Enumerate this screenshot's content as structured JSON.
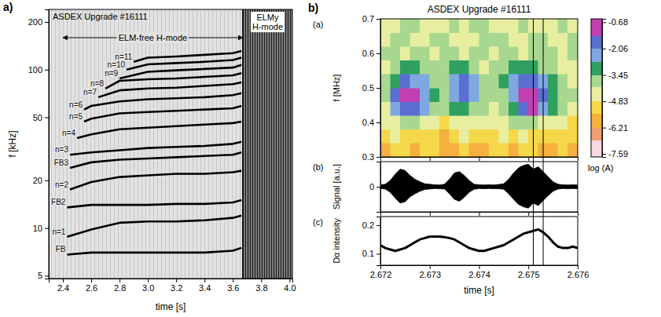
{
  "chart_data": [
    {
      "type": "line",
      "panel": "a)",
      "title": "ASDEX Upgrade #16111",
      "xlabel": "time [s]",
      "ylabel": "f [kHz]",
      "log": "y",
      "xlim": [
        2.3,
        4.02
      ],
      "ylim": [
        4.8,
        240
      ],
      "xticks": [
        2.4,
        2.6,
        2.8,
        {
          "value": 3,
          "label": "3.0"
        },
        3.2,
        3.4,
        3.6,
        3.8,
        {
          "value": 4,
          "label": "4.0"
        }
      ],
      "yticks": [
        5,
        10,
        20,
        50,
        100,
        200
      ],
      "regions": [
        {
          "label": "ELM-free H-mode",
          "x": [
            2.4,
            3.67
          ]
        },
        {
          "label": "ELMy H-mode",
          "x": [
            3.67,
            4.02
          ]
        }
      ],
      "series": [
        {
          "name": "FB",
          "color": "#000000",
          "x": [
            2.43,
            2.6,
            2.8,
            3.0,
            3.2,
            3.4,
            3.6,
            3.66
          ],
          "values": [
            6.8,
            7,
            7,
            7,
            7,
            7,
            7.2,
            7.5
          ]
        },
        {
          "name": "n=1",
          "color": "#000000",
          "x": [
            2.43,
            2.6,
            2.8,
            3.0,
            3.2,
            3.4,
            3.6,
            3.66
          ],
          "values": [
            8.8,
            9.8,
            10.8,
            11,
            11,
            11.2,
            11.6,
            12
          ]
        },
        {
          "name": "FB2",
          "color": "#000000",
          "x": [
            2.43,
            2.6,
            2.8,
            3.0,
            3.2,
            3.4,
            3.6,
            3.66
          ],
          "values": [
            13.5,
            14,
            14,
            14,
            14.2,
            14.2,
            14.5,
            15
          ]
        },
        {
          "name": "n=2",
          "color": "#000000",
          "x": [
            2.45,
            2.6,
            2.8,
            3.0,
            3.2,
            3.4,
            3.6,
            3.66
          ],
          "values": [
            17.5,
            19.5,
            21,
            21.5,
            22,
            22,
            22.5,
            23
          ]
        },
        {
          "name": "FB3",
          "color": "#000000",
          "x": [
            2.45,
            2.6,
            2.8,
            3.0,
            3.2,
            3.4,
            3.6,
            3.66
          ],
          "values": [
            24,
            26,
            27,
            27.5,
            28,
            28.5,
            29,
            30
          ]
        },
        {
          "name": "n=3",
          "color": "#000000",
          "x": [
            2.45,
            2.6,
            2.8,
            3.0,
            3.2,
            3.4,
            3.6,
            3.66
          ],
          "values": [
            29,
            30,
            31,
            32,
            32.5,
            33,
            34,
            35
          ]
        },
        {
          "name": "n=4",
          "color": "#000000",
          "x": [
            2.5,
            2.6,
            2.8,
            3.0,
            3.2,
            3.4,
            3.6,
            3.66
          ],
          "values": [
            37,
            39,
            42,
            43,
            44,
            45,
            46,
            47
          ]
        },
        {
          "name": "n=5",
          "color": "#000000",
          "x": [
            2.55,
            2.6,
            2.8,
            3.0,
            3.2,
            3.4,
            3.6,
            3.66
          ],
          "values": [
            47,
            49,
            53,
            54,
            55,
            56,
            57,
            59
          ]
        },
        {
          "name": "n=6",
          "color": "#000000",
          "x": [
            2.55,
            2.6,
            2.8,
            3.0,
            3.2,
            3.4,
            3.6,
            3.66
          ],
          "values": [
            56,
            59,
            63,
            65,
            66,
            67,
            69,
            71
          ]
        },
        {
          "name": "n=7",
          "color": "#000000",
          "x": [
            2.65,
            2.8,
            3.0,
            3.2,
            3.4,
            3.6,
            3.66
          ],
          "values": [
            67,
            74,
            76,
            77,
            79,
            81,
            83
          ]
        },
        {
          "name": "n=8",
          "color": "#000000",
          "x": [
            2.7,
            2.8,
            3.0,
            3.2,
            3.4,
            3.6,
            3.66
          ],
          "values": [
            76,
            85,
            87,
            88,
            90,
            92,
            95
          ]
        },
        {
          "name": "n=9",
          "color": "#000000",
          "x": [
            2.8,
            3.0,
            3.2,
            3.4,
            3.6,
            3.66
          ],
          "values": [
            88,
            97,
            99,
            101,
            103,
            107
          ]
        },
        {
          "name": "n=10",
          "color": "#000000",
          "x": [
            2.85,
            3.0,
            3.2,
            3.4,
            3.6,
            3.66
          ],
          "values": [
            100,
            108,
            110,
            112,
            115,
            119
          ]
        },
        {
          "name": "n=11",
          "color": "#000000",
          "x": [
            2.9,
            3.0,
            3.2,
            3.4,
            3.6,
            3.66
          ],
          "values": [
            112,
            119,
            121,
            124,
            127,
            131
          ]
        }
      ]
    },
    {
      "type": "heatmap",
      "panel": "b)",
      "title": "ASDEX Upgrade #16111",
      "subplot": "(a)",
      "ylabel": "f [MHz]",
      "xlim": [
        2.672,
        2.676
      ],
      "ylim": [
        0.3,
        0.7
      ],
      "xticks": [
        2.672,
        2.673,
        2.674,
        2.675,
        2.676
      ],
      "yticks": [
        0.3,
        0.4,
        0.5,
        0.6,
        0.7
      ],
      "tick_labels": "y",
      "x_edges": [
        2.672,
        2.6722,
        2.6724,
        2.6726,
        2.6728,
        2.673,
        2.6732,
        2.6734,
        2.6736,
        2.6738,
        2.674,
        2.6742,
        2.6744,
        2.6746,
        2.6748,
        2.675,
        2.6752,
        2.6754,
        2.6756,
        2.6758,
        2.676
      ],
      "y_edges": [
        0.3,
        0.34,
        0.38,
        0.42,
        0.46,
        0.5,
        0.54,
        0.58,
        0.62,
        0.66,
        0.7
      ],
      "z": [
        [
          -5.8,
          -5.2,
          -5.5,
          -6.0,
          -5.4,
          -5.0,
          -5.6,
          -5.9,
          -5.3,
          -5.7,
          -6.1,
          -5.5,
          -5.2,
          -5.8,
          -5.4,
          -5.0,
          -5.6,
          -6.0,
          -5.3,
          -5.7
        ],
        [
          -5.0,
          -4.8,
          -5.2,
          -5.4,
          -4.9,
          -5.1,
          -5.6,
          -5.0,
          -4.7,
          -5.3,
          -5.5,
          -5.0,
          -4.8,
          -5.2,
          -4.6,
          -4.9,
          -5.3,
          -5.5,
          -5.0,
          -5.2
        ],
        [
          -4.6,
          -4.2,
          -3.9,
          -4.1,
          -4.4,
          -4.7,
          -4.9,
          -4.5,
          -4.2,
          -4.6,
          -4.8,
          -4.5,
          -4.3,
          -4.0,
          -3.8,
          -4.1,
          -4.5,
          -4.8,
          -4.6,
          -4.9
        ],
        [
          -4.2,
          -2.6,
          -1.6,
          -1.8,
          -2.4,
          -3.6,
          -4.0,
          -3.2,
          -2.8,
          -3.5,
          -4.1,
          -4.3,
          -3.9,
          -2.9,
          -1.9,
          -1.4,
          -2.2,
          -3.4,
          -4.0,
          -4.4
        ],
        [
          -4.0,
          -1.9,
          -0.9,
          -1.3,
          -2.2,
          -3.4,
          -3.8,
          -2.3,
          -1.8,
          -2.6,
          -3.9,
          -4.0,
          -3.5,
          -2.1,
          -1.0,
          -0.8,
          -1.7,
          -3.0,
          -3.9,
          -4.1
        ],
        [
          -4.1,
          -2.8,
          -2.0,
          -2.1,
          -2.7,
          -3.7,
          -3.6,
          -2.1,
          -1.9,
          -2.5,
          -3.8,
          -4.0,
          -3.4,
          -2.3,
          -1.8,
          -2.0,
          -2.4,
          -3.3,
          -4.0,
          -4.2
        ],
        [
          -4.3,
          -3.7,
          -3.3,
          -3.4,
          -3.8,
          -4.1,
          -4.0,
          -3.2,
          -3.0,
          -3.5,
          -4.2,
          -4.1,
          -3.8,
          -3.3,
          -3.0,
          -3.1,
          -3.5,
          -3.9,
          -4.2,
          -4.3
        ],
        [
          -4.1,
          -3.9,
          -4.2,
          -4.0,
          -3.8,
          -4.3,
          -4.1,
          -3.9,
          -4.2,
          -4.0,
          -3.7,
          -4.2,
          -4.0,
          -3.9,
          -4.3,
          -4.1,
          -3.8,
          -4.0,
          -4.2,
          -3.9
        ],
        [
          -4.4,
          -4.0,
          -3.8,
          -4.2,
          -4.5,
          -4.1,
          -3.9,
          -4.3,
          -4.6,
          -4.2,
          -4.0,
          -3.8,
          -4.1,
          -4.4,
          -4.2,
          -3.9,
          -4.1,
          -4.5,
          -4.3,
          -4.0
        ],
        [
          -4.2,
          -4.5,
          -4.1,
          -3.9,
          -4.3,
          -4.6,
          -4.2,
          -4.0,
          -4.4,
          -4.1,
          -3.8,
          -4.2,
          -4.5,
          -4.3,
          -4.0,
          -4.4,
          -4.6,
          -4.2,
          -3.9,
          -4.3
        ]
      ],
      "colorbar": {
        "label": "log (A)",
        "lim": [
          -7.75,
          -0.5
        ],
        "ticks": [
          -0.68,
          -2.06,
          -3.45,
          -4.83,
          -6.21,
          -7.59
        ],
        "levels": [
          -7.75,
          -6.9,
          -6.21,
          -5.5,
          -4.83,
          -4.1,
          -3.45,
          -2.75,
          -2.06,
          -1.4,
          -0.5
        ],
        "colors": [
          "#f7d7e0",
          "#f0a070",
          "#f5b040",
          "#f4d84a",
          "#e8eea0",
          "#a8d890",
          "#30a060",
          "#7fa8e0",
          "#5a6fd0",
          "#c040b0"
        ]
      },
      "vlines": [
        2.6751,
        2.6753
      ]
    },
    {
      "type": "area",
      "subplot": "(b)",
      "ylabel": "Signal [a.u.]",
      "color": "#000000",
      "xlim": [
        2.672,
        2.676
      ],
      "ylim": [
        -1,
        1
      ],
      "xticks": [
        2.672,
        2.673,
        2.674,
        2.675,
        2.676
      ],
      "yticks": [
        0
      ],
      "tick_labels": "y",
      "x": [
        2.672,
        2.6721,
        2.6722,
        2.6723,
        2.6724,
        2.6725,
        2.6726,
        2.6727,
        2.6728,
        2.6729,
        2.673,
        2.6731,
        2.6732,
        2.6733,
        2.6734,
        2.6735,
        2.6736,
        2.6737,
        2.6738,
        2.6739,
        2.674,
        2.6741,
        2.6742,
        2.6743,
        2.6744,
        2.6745,
        2.6746,
        2.6747,
        2.6748,
        2.6749,
        2.675,
        2.6751,
        2.6752,
        2.6753,
        2.6754,
        2.6755,
        2.6756,
        2.6757,
        2.6758,
        2.6759,
        2.676
      ],
      "upper": [
        0.08,
        0.1,
        0.25,
        0.5,
        0.7,
        0.65,
        0.45,
        0.3,
        0.2,
        0.12,
        0.1,
        0.08,
        0.07,
        0.1,
        0.3,
        0.55,
        0.6,
        0.45,
        0.25,
        0.1,
        0.08,
        0.07,
        0.08,
        0.07,
        0.09,
        0.12,
        0.3,
        0.55,
        0.75,
        0.85,
        0.9,
        0.7,
        0.8,
        0.6,
        0.4,
        0.2,
        0.1,
        0.08,
        0.07,
        0.08,
        0.07
      ],
      "lower": [
        -0.07,
        -0.09,
        -0.22,
        -0.45,
        -0.65,
        -0.6,
        -0.4,
        -0.28,
        -0.18,
        -0.11,
        -0.09,
        -0.07,
        -0.08,
        -0.09,
        -0.28,
        -0.5,
        -0.58,
        -0.42,
        -0.22,
        -0.1,
        -0.07,
        -0.08,
        -0.07,
        -0.08,
        -0.08,
        -0.1,
        -0.28,
        -0.5,
        -0.7,
        -0.8,
        -0.85,
        -0.65,
        -0.75,
        -0.55,
        -0.35,
        -0.18,
        -0.09,
        -0.07,
        -0.08,
        -0.07,
        -0.08
      ]
    },
    {
      "type": "line",
      "subplot": "(c)",
      "ylabel": "Dα intensity",
      "xlabel": "time [s]",
      "color": "#000000",
      "xlim": [
        2.672,
        2.676
      ],
      "ylim": [
        0.06,
        0.23
      ],
      "xticks": [
        2.672,
        2.673,
        2.674,
        2.675,
        2.676
      ],
      "yticks": [
        0.1,
        0.2
      ],
      "x": [
        2.672,
        2.6721,
        2.6722,
        2.6723,
        2.6724,
        2.6725,
        2.6726,
        2.6727,
        2.6728,
        2.6729,
        2.673,
        2.6731,
        2.6732,
        2.6733,
        2.6734,
        2.6735,
        2.6736,
        2.6737,
        2.6738,
        2.6739,
        2.674,
        2.6741,
        2.6742,
        2.6743,
        2.6744,
        2.6745,
        2.6746,
        2.6747,
        2.6748,
        2.6749,
        2.675,
        2.6751,
        2.6752,
        2.6753,
        2.6754,
        2.6755,
        2.6756,
        2.6757,
        2.6758,
        2.6759,
        2.676
      ],
      "values": [
        0.13,
        0.12,
        0.115,
        0.11,
        0.115,
        0.12,
        0.13,
        0.14,
        0.15,
        0.155,
        0.16,
        0.16,
        0.16,
        0.158,
        0.155,
        0.15,
        0.14,
        0.13,
        0.12,
        0.115,
        0.11,
        0.11,
        0.115,
        0.12,
        0.125,
        0.13,
        0.14,
        0.15,
        0.16,
        0.17,
        0.175,
        0.18,
        0.185,
        0.175,
        0.16,
        0.14,
        0.125,
        0.12,
        0.12,
        0.125,
        0.12
      ]
    }
  ]
}
